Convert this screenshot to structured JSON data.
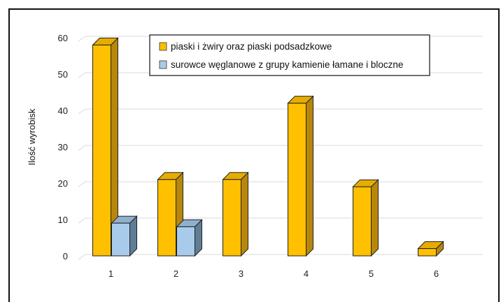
{
  "chart_data": {
    "type": "bar",
    "style": "3d-clustered-columns",
    "categories": [
      "1",
      "2",
      "3",
      "4",
      "5",
      "6"
    ],
    "ylabel": "Ilość wyrobisk",
    "xlabel": "",
    "ylim": [
      0,
      60
    ],
    "yticks": [
      0,
      10,
      20,
      30,
      40,
      50,
      60
    ],
    "grid": true,
    "legend_position": "top-center",
    "series": [
      {
        "name": "piaski i żwiry oraz piaski podsadzkowe",
        "values": [
          58,
          21,
          21,
          42,
          19,
          2
        ],
        "color": "#FFC000",
        "side_color": "#B8860B",
        "top_color": "#E6AC00"
      },
      {
        "name": "surowce węglanowe z grupy kamienie łamane i bloczne",
        "values": [
          9,
          8,
          0,
          0,
          0,
          0
        ],
        "color": "#A9CBEB",
        "side_color": "#5F7E96",
        "top_color": "#8FB0CE"
      }
    ]
  }
}
